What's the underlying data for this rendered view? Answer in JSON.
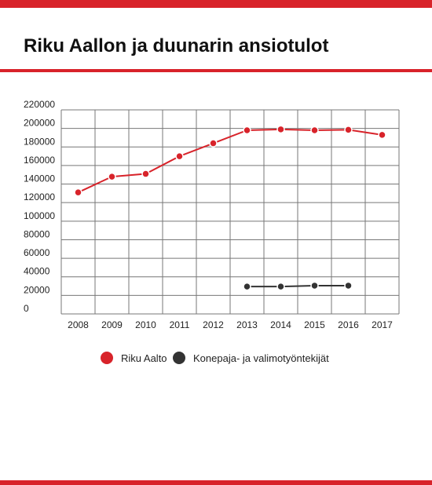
{
  "colors": {
    "accent": "#d8232a",
    "dark": "#333333",
    "grid": "#777777"
  },
  "chart_data": {
    "type": "line",
    "title": "Riku Aallon ja duunarin ansiotulot",
    "xlabel": "",
    "ylabel": "",
    "categories": [
      "2008",
      "2009",
      "2010",
      "2011",
      "2012",
      "2013",
      "2014",
      "2015",
      "2016",
      "2017"
    ],
    "y_ticks": [
      "0",
      "20000",
      "40000",
      "60000",
      "80000",
      "100000",
      "120000",
      "140000",
      "160000",
      "180000",
      "200000",
      "220000"
    ],
    "ylim": [
      0,
      220000
    ],
    "grid": true,
    "legend_position": "bottom",
    "series": [
      {
        "name": "Riku Aalto",
        "color": "#d8232a",
        "values": [
          131000,
          148000,
          151000,
          170000,
          184000,
          198000,
          199000,
          198000,
          198500,
          193000
        ]
      },
      {
        "name": "Konepaja- ja valimotyöntekijät",
        "color": "#333333",
        "values": [
          null,
          null,
          null,
          null,
          null,
          29500,
          29500,
          30500,
          30500,
          null
        ]
      }
    ]
  }
}
